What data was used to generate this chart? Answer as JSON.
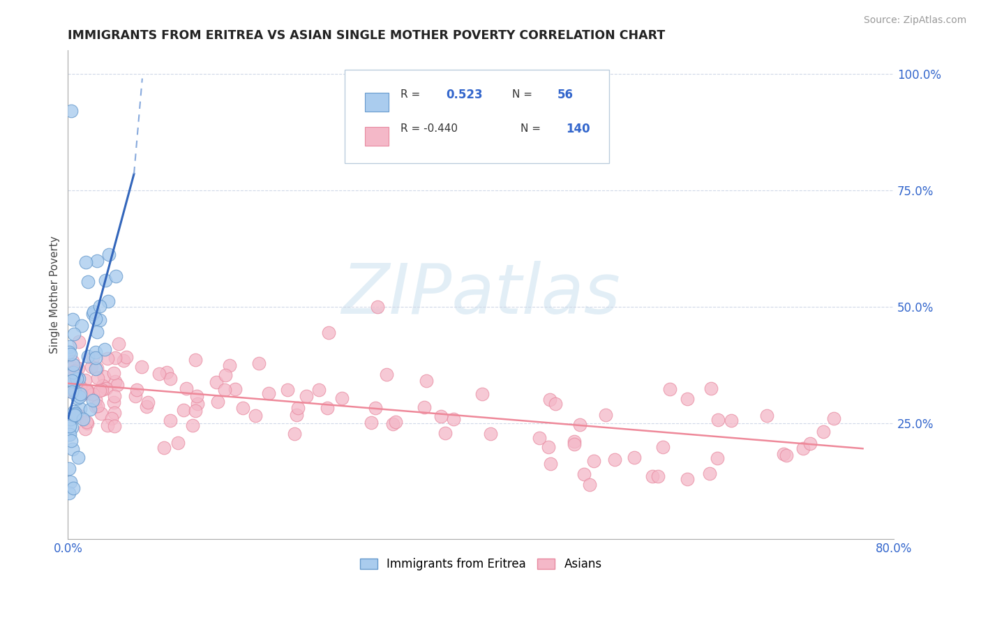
{
  "title": "IMMIGRANTS FROM ERITREA VS ASIAN SINGLE MOTHER POVERTY CORRELATION CHART",
  "source": "Source: ZipAtlas.com",
  "ylabel": "Single Mother Poverty",
  "background_color": "#ffffff",
  "grid_color": "#d0d8e8",
  "blue_scatter_color_face": "#aaccee",
  "blue_scatter_color_edge": "#6699cc",
  "pink_scatter_color_face": "#f4b8c8",
  "pink_scatter_color_edge": "#e88aa0",
  "blue_line_color": "#3366bb",
  "blue_dashed_color": "#88aadd",
  "pink_line_color": "#ee8899",
  "watermark_color": "#d0e4f0",
  "watermark_text": "ZIPatlas",
  "legend_r1": "R =",
  "legend_v1": "0.523",
  "legend_n1": "N =",
  "legend_nv1": "56",
  "legend_r2": "R = -0.440",
  "legend_n2": "N =",
  "legend_nv2": "140",
  "bottom_legend1": "Immigrants from Eritrea",
  "bottom_legend2": "Asians",
  "text_color": "#3366cc",
  "label_color": "#222222",
  "xlim": [
    0.0,
    0.8
  ],
  "ylim": [
    0.0,
    1.05
  ],
  "yticks": [
    0.25,
    0.5,
    0.75,
    1.0
  ],
  "ytick_labels": [
    "25.0%",
    "50.0%",
    "75.0%",
    "100.0%"
  ],
  "xtick_left": "0.0%",
  "xtick_right": "80.0%"
}
